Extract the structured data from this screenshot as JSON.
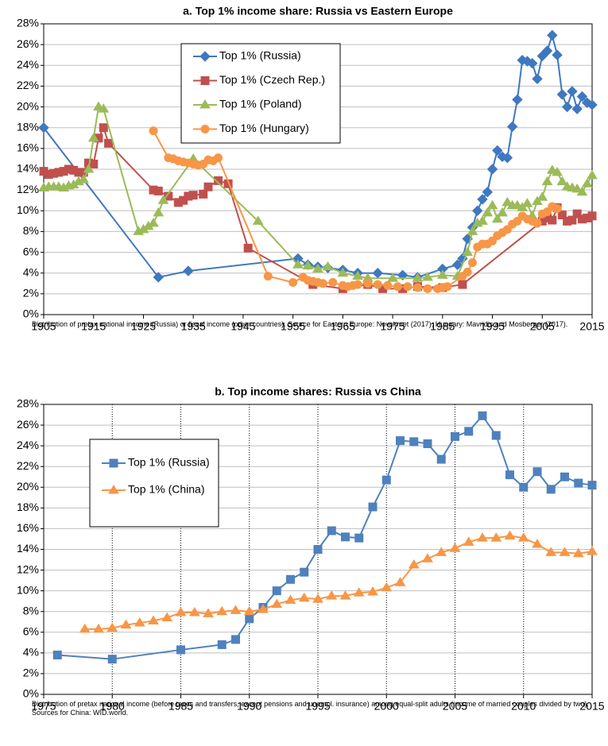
{
  "chart_data": [
    {
      "type": "line",
      "title": "a. Top 1% income share: Russia vs Eastern Europe",
      "caption": "Distribution of pretax national income (Russia) or fiscal income (other countries). Source for Eastern Europe: Novokmet (2017); Hungary: Mavridis and Mosberger (2017).",
      "xlim": [
        1905,
        2015
      ],
      "xticks": [
        1905,
        1915,
        1925,
        1935,
        1945,
        1955,
        1965,
        1975,
        1985,
        1995,
        2005,
        2015
      ],
      "ylim": [
        0,
        28
      ],
      "yticks": [
        {
          "value": 0,
          "label": "0%"
        },
        {
          "value": 2,
          "label": "2%"
        },
        {
          "value": 4,
          "label": "4%"
        },
        {
          "value": 6,
          "label": "6%"
        },
        {
          "value": 8,
          "label": "8%"
        },
        {
          "value": 10,
          "label": "10%"
        },
        {
          "value": 12,
          "label": "12%"
        },
        {
          "value": 14,
          "label": "14%"
        },
        {
          "value": 16,
          "label": "16%"
        },
        {
          "value": 18,
          "label": "18%"
        },
        {
          "value": 20,
          "label": "20%"
        },
        {
          "value": 22,
          "label": "22%"
        },
        {
          "value": 24,
          "label": "24%"
        },
        {
          "value": 26,
          "label": "26%"
        },
        {
          "value": 28,
          "label": "28%"
        }
      ],
      "grid": "horizontal",
      "legend": "upper center",
      "series": [
        {
          "name": "Top 1% (Russia)",
          "color": "#3f78c0",
          "marker": "diamond",
          "x": [
            1905,
            1928,
            1934,
            1956,
            1958,
            1960,
            1962,
            1965,
            1968,
            1972,
            1977,
            1980,
            1985,
            1988,
            1989,
            1990,
            1991,
            1992,
            1993,
            1994,
            1995,
            1996,
            1997,
            1998,
            1999,
            2000,
            2001,
            2002,
            2003,
            2004,
            2005,
            2006,
            2007,
            2008,
            2009,
            2010,
            2011,
            2012,
            2013,
            2014,
            2015
          ],
          "values": [
            18.0,
            3.6,
            4.2,
            5.4,
            4.8,
            4.6,
            4.5,
            4.3,
            4.0,
            4.0,
            3.8,
            3.6,
            4.4,
            4.8,
            5.4,
            7.3,
            8.4,
            10.0,
            11.1,
            11.8,
            14.0,
            15.8,
            15.2,
            15.1,
            18.1,
            20.7,
            24.5,
            24.4,
            24.2,
            22.7,
            24.9,
            25.4,
            26.9,
            25.0,
            21.2,
            20.0,
            21.5,
            19.8,
            21.0,
            20.4,
            20.2
          ]
        },
        {
          "name": "Top 1% (Czech Rep.)",
          "color": "#c0504d",
          "marker": "square",
          "x": [
            1905,
            1906,
            1907,
            1908,
            1909,
            1910,
            1911,
            1912,
            1913,
            1914,
            1915,
            1916,
            1917,
            1918,
            1927,
            1928,
            1930,
            1932,
            1933,
            1934,
            1935,
            1937,
            1938,
            1940,
            1942,
            1946,
            1959,
            1965,
            1970,
            1973,
            1977,
            1980,
            1985,
            1989,
            2005,
            2006,
            2007,
            2008,
            2009,
            2010,
            2011,
            2012,
            2013,
            2014,
            2015
          ],
          "values": [
            13.8,
            13.5,
            13.6,
            13.7,
            13.8,
            14.0,
            13.9,
            13.7,
            13.7,
            14.6,
            14.5,
            17.0,
            18.0,
            16.5,
            12.0,
            11.9,
            11.4,
            10.8,
            11.0,
            11.4,
            11.5,
            11.6,
            12.3,
            12.9,
            12.6,
            6.4,
            2.9,
            2.5,
            2.9,
            2.5,
            2.5,
            2.7,
            2.6,
            2.9,
            9.0,
            9.3,
            9.1,
            10.3,
            9.6,
            9.0,
            9.1,
            9.7,
            9.2,
            9.3,
            9.5
          ]
        },
        {
          "name": "Top 1% (Poland)",
          "color": "#9bbb59",
          "marker": "triangle",
          "x": [
            1905,
            1906,
            1907,
            1908,
            1909,
            1910,
            1911,
            1912,
            1913,
            1914,
            1915,
            1916,
            1917,
            1924,
            1925,
            1926,
            1927,
            1928,
            1929,
            1935,
            1948,
            1956,
            1958,
            1960,
            1962,
            1965,
            1968,
            1970,
            1975,
            1980,
            1982,
            1985,
            1988,
            1990,
            1991,
            1992,
            1993,
            1994,
            1995,
            1996,
            1997,
            1998,
            1999,
            2000,
            2001,
            2002,
            2003,
            2004,
            2005,
            2006,
            2007,
            2008,
            2009,
            2010,
            2011,
            2012,
            2013,
            2014,
            2015
          ],
          "values": [
            12.2,
            12.3,
            12.3,
            12.3,
            12.2,
            12.4,
            12.5,
            12.8,
            13.0,
            14.0,
            17.0,
            20.0,
            19.8,
            8.0,
            8.2,
            8.5,
            8.8,
            9.8,
            11.0,
            15.0,
            9.0,
            4.8,
            4.7,
            4.4,
            4.6,
            4.0,
            3.7,
            3.5,
            3.5,
            3.5,
            3.6,
            3.8,
            3.7,
            6.0,
            8.0,
            8.8,
            9.0,
            9.8,
            10.5,
            9.2,
            9.8,
            10.8,
            10.5,
            10.5,
            10.3,
            10.7,
            9.5,
            10.9,
            11.3,
            12.8,
            13.9,
            13.7,
            12.8,
            12.3,
            12.2,
            12.1,
            11.8,
            12.6,
            13.4
          ]
        },
        {
          "name": "Top 1% (Hungary)",
          "color": "#f79646",
          "marker": "circle",
          "x": [
            1927,
            1930,
            1931,
            1932,
            1933,
            1934,
            1935,
            1936,
            1937,
            1938,
            1939,
            1940,
            1950,
            1955,
            1957,
            1958,
            1959,
            1960,
            1961,
            1963,
            1965,
            1966,
            1967,
            1968,
            1970,
            1972,
            1974,
            1976,
            1978,
            1980,
            1982,
            1984,
            1985,
            1986,
            1989,
            1990,
            1991,
            1992,
            1993,
            1994,
            1995,
            1996,
            1997,
            1998,
            1999,
            2000,
            2001,
            2002,
            2003,
            2004,
            2005,
            2006,
            2007,
            2008
          ],
          "values": [
            17.7,
            15.1,
            15.0,
            14.8,
            14.7,
            14.6,
            14.5,
            14.4,
            14.5,
            14.9,
            14.8,
            15.1,
            3.7,
            3.1,
            3.6,
            3.3,
            3.2,
            3.1,
            3.0,
            3.1,
            2.8,
            2.7,
            2.8,
            2.9,
            3.0,
            2.9,
            2.8,
            2.7,
            2.7,
            2.6,
            2.5,
            2.5,
            2.6,
            2.7,
            3.7,
            4.1,
            5.0,
            6.5,
            6.8,
            6.8,
            7.1,
            7.6,
            7.9,
            8.2,
            8.7,
            9.0,
            9.5,
            9.2,
            9.0,
            8.8,
            9.7,
            9.9,
            10.4,
            10.2
          ]
        }
      ]
    },
    {
      "type": "line",
      "title": "b. Top income shares: Russia vs China",
      "caption": "Distribution of pretax national income (before taxes and transfers, except pensions and unempl. insurance) among equal-split adults (income of married couples divided by two). Sources for China: WID.world.",
      "xlim": [
        1975,
        2015
      ],
      "xticks": [
        1975,
        1980,
        1985,
        1990,
        1995,
        2000,
        2005,
        2010,
        2015
      ],
      "ylim": [
        0,
        28
      ],
      "yticks": [
        {
          "value": 0,
          "label": "0%"
        },
        {
          "value": 2,
          "label": "2%"
        },
        {
          "value": 4,
          "label": "4%"
        },
        {
          "value": 6,
          "label": "6%"
        },
        {
          "value": 8,
          "label": "8%"
        },
        {
          "value": 10,
          "label": "10%"
        },
        {
          "value": 12,
          "label": "12%"
        },
        {
          "value": 14,
          "label": "14%"
        },
        {
          "value": 16,
          "label": "16%"
        },
        {
          "value": 18,
          "label": "18%"
        },
        {
          "value": 20,
          "label": "20%"
        },
        {
          "value": 22,
          "label": "22%"
        },
        {
          "value": 24,
          "label": "24%"
        },
        {
          "value": 26,
          "label": "26%"
        },
        {
          "value": 28,
          "label": "28%"
        }
      ],
      "grid": "both",
      "legend": "upper left",
      "series": [
        {
          "name": "Top 1% (Russia)",
          "color": "#4f81bd",
          "marker": "square",
          "x": [
            1976,
            1980,
            1985,
            1988,
            1989,
            1990,
            1991,
            1992,
            1993,
            1994,
            1995,
            1996,
            1997,
            1998,
            1999,
            2000,
            2001,
            2002,
            2003,
            2004,
            2005,
            2006,
            2007,
            2008,
            2009,
            2010,
            2011,
            2012,
            2013,
            2014,
            2015
          ],
          "values": [
            3.8,
            3.4,
            4.3,
            4.8,
            5.3,
            7.3,
            8.4,
            10.0,
            11.1,
            11.8,
            14.0,
            15.8,
            15.2,
            15.1,
            18.1,
            20.7,
            24.5,
            24.4,
            24.2,
            22.7,
            24.9,
            25.4,
            26.9,
            25.0,
            21.2,
            20.0,
            21.5,
            19.8,
            21.0,
            20.4,
            20.2
          ]
        },
        {
          "name": "Top 1% (China)",
          "color": "#f79646",
          "marker": "triangle",
          "x": [
            1978,
            1979,
            1980,
            1981,
            1982,
            1983,
            1984,
            1985,
            1986,
            1987,
            1988,
            1989,
            1990,
            1991,
            1992,
            1993,
            1994,
            1995,
            1996,
            1997,
            1998,
            1999,
            2000,
            2001,
            2002,
            2003,
            2004,
            2005,
            2006,
            2007,
            2008,
            2009,
            2010,
            2011,
            2012,
            2013,
            2014,
            2015
          ],
          "values": [
            6.3,
            6.3,
            6.4,
            6.7,
            6.9,
            7.1,
            7.4,
            7.9,
            7.9,
            7.8,
            8.0,
            8.1,
            8.0,
            8.2,
            8.7,
            9.1,
            9.3,
            9.2,
            9.5,
            9.5,
            9.8,
            9.9,
            10.3,
            10.8,
            12.5,
            13.1,
            13.7,
            14.1,
            14.7,
            15.1,
            15.1,
            15.3,
            15.1,
            14.5,
            13.7,
            13.7,
            13.6,
            13.8
          ]
        }
      ]
    }
  ]
}
